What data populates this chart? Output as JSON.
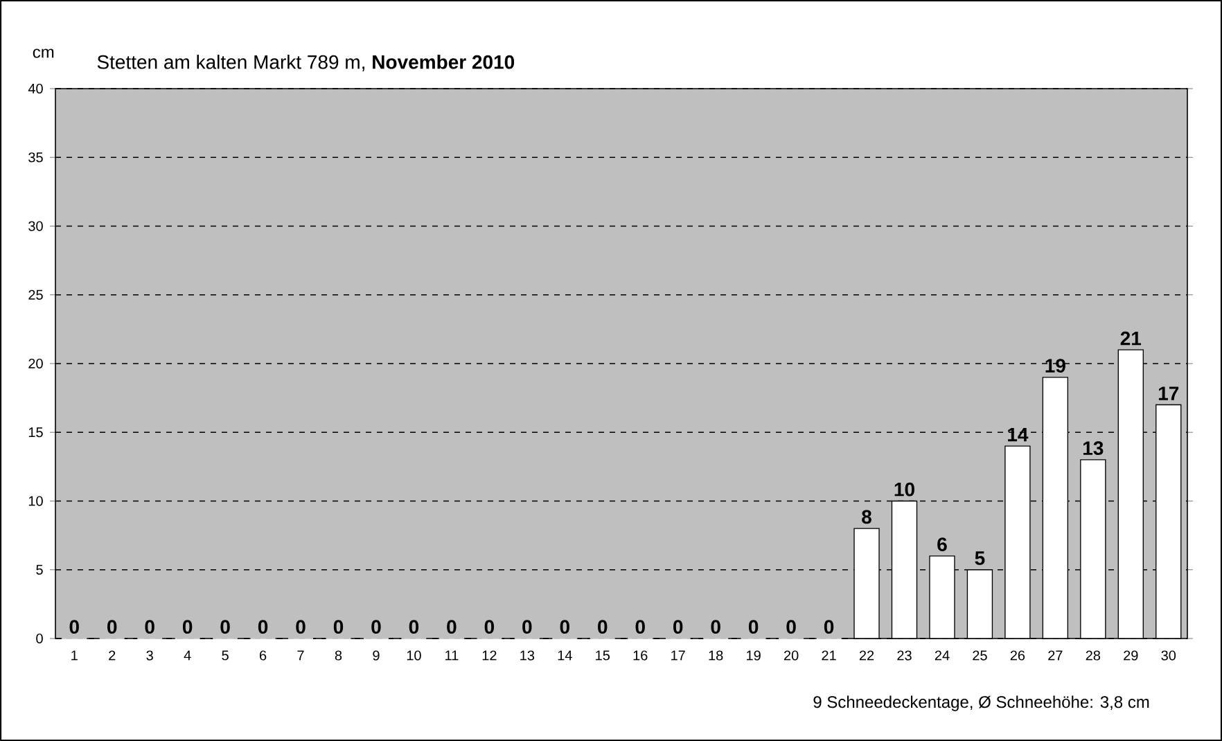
{
  "chart_data": {
    "type": "bar",
    "title": "Stetten am kalten Markt 789 m, **November 2010**",
    "ylabel": "cm",
    "categories": [
      "1",
      "2",
      "3",
      "4",
      "5",
      "6",
      "7",
      "8",
      "9",
      "10",
      "11",
      "12",
      "13",
      "14",
      "15",
      "16",
      "17",
      "18",
      "19",
      "20",
      "21",
      "22",
      "23",
      "24",
      "25",
      "26",
      "27",
      "28",
      "29",
      "30"
    ],
    "values": [
      0,
      0,
      0,
      0,
      0,
      0,
      0,
      0,
      0,
      0,
      0,
      0,
      0,
      0,
      0,
      0,
      0,
      0,
      0,
      0,
      0,
      8,
      10,
      6,
      5,
      14,
      19,
      13,
      21,
      17
    ],
    "color": "#ffffff",
    "ylim": [
      0,
      40
    ],
    "yticks": [
      0,
      5,
      10,
      15,
      20,
      25,
      30,
      35,
      40
    ],
    "grid": "y",
    "data_labels": true,
    "annotations": [
      "9 Schneedeckentage, Ø Schneehöhe:  3,8 cm"
    ]
  }
}
